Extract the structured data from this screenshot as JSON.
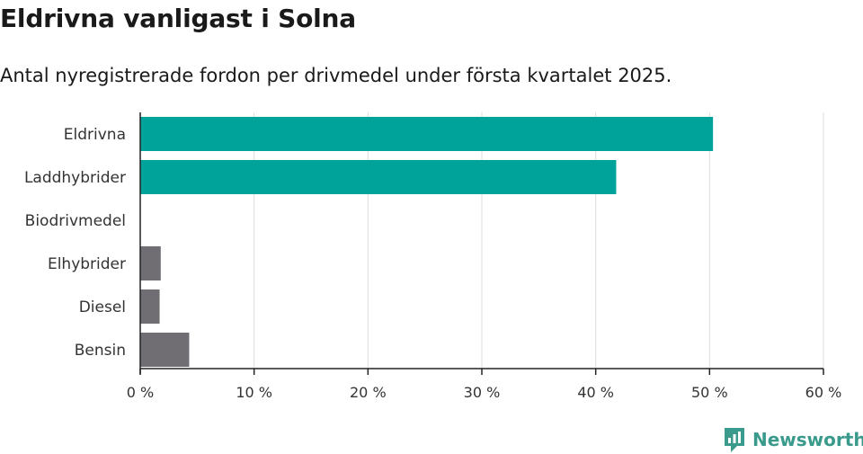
{
  "title": "Eldrivna vanligast i Solna",
  "subtitle": "Antal nyregistrerade fordon per drivmedel under första kvartalet 2025.",
  "brand": {
    "name": "Newsworthy",
    "icon": "newsworthy-logo-icon",
    "color": "#3a9a8c"
  },
  "chart_data": {
    "type": "bar",
    "orientation": "horizontal",
    "categories": [
      "Eldrivna",
      "Laddhybrider",
      "Biodrivmedel",
      "Elhybrider",
      "Diesel",
      "Bensin"
    ],
    "values": [
      50.3,
      41.8,
      0,
      1.8,
      1.7,
      4.3
    ],
    "colors": [
      "#00a399",
      "#00a399",
      "#00a399",
      "#706e73",
      "#706e73",
      "#706e73"
    ],
    "xlim": [
      0,
      60
    ],
    "xticks": [
      0,
      10,
      20,
      30,
      40,
      50,
      60
    ],
    "xtick_labels": [
      "0 %",
      "10 %",
      "20 %",
      "30 %",
      "40 %",
      "50 %",
      "60 %"
    ],
    "grid": true
  }
}
